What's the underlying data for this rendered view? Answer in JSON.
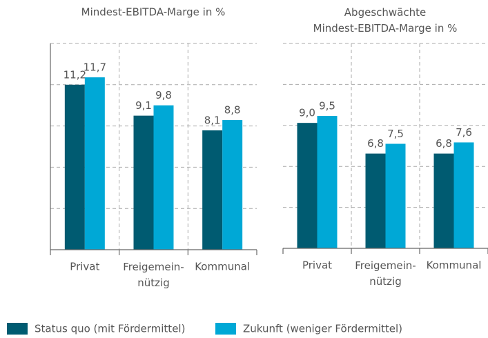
{
  "chart_data": [
    {
      "type": "bar",
      "title": "Mindest-EBITDA-Marge in %",
      "categories": [
        "Privat",
        "Freigemein-\nnützig",
        "Kommunal"
      ],
      "series": [
        {
          "name": "Status quo (mit Fördermittel)",
          "color": "#005b71",
          "values": [
            11.2,
            9.1,
            8.1
          ],
          "value_labels": [
            "11,2",
            "9,1",
            "8,1"
          ]
        },
        {
          "name": "Zukunft (weniger Fördermittel)",
          "color": "#00a8d6",
          "values": [
            11.7,
            9.8,
            8.8
          ],
          "value_labels": [
            "11,7",
            "9,8",
            "8,8"
          ]
        }
      ],
      "ylim": [
        0,
        14
      ],
      "yticks": [
        0,
        2.8,
        5.6,
        8.4,
        11.2,
        14
      ],
      "grid": true
    },
    {
      "type": "bar",
      "title": "Abgeschwächte\nMindest-EBITDA-Marge in %",
      "categories": [
        "Privat",
        "Freigemein-\nnützig",
        "Kommunal"
      ],
      "series": [
        {
          "name": "Status quo (mit Fördermittel)",
          "color": "#005b71",
          "values": [
            9.0,
            6.8,
            6.8
          ],
          "value_labels": [
            "9,0",
            "6,8",
            "6,8"
          ]
        },
        {
          "name": "Zukunft (weniger Fördermittel)",
          "color": "#00a8d6",
          "values": [
            9.5,
            7.5,
            7.6
          ],
          "value_labels": [
            "9,5",
            "7,5",
            "7,6"
          ]
        }
      ],
      "ylim": [
        0,
        14.7
      ],
      "yticks": [
        0,
        2.94,
        5.88,
        8.82,
        11.76,
        14.7
      ],
      "grid": true
    }
  ]
}
